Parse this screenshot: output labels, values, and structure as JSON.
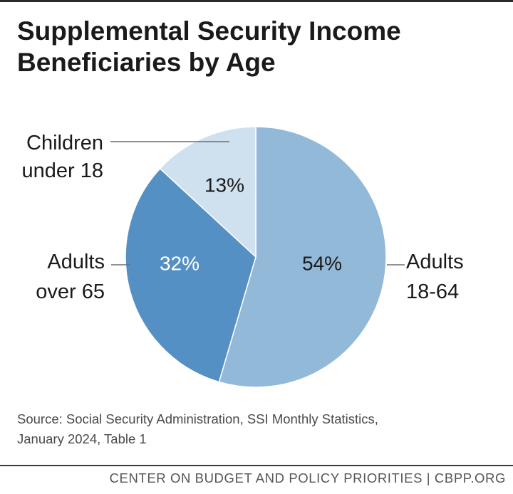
{
  "header": {
    "title_line1": "Supplemental Security Income",
    "title_line2": "Beneficiaries by Age"
  },
  "chart_data": {
    "type": "pie",
    "title": "Supplemental Security Income Beneficiaries by Age",
    "slices": [
      {
        "label_lines": [
          "Adults",
          "18-64"
        ],
        "value": 54,
        "display": "54%",
        "color": "#93b9d9",
        "text_color": "#1a1a1a"
      },
      {
        "label_lines": [
          "Adults",
          "over 65"
        ],
        "value": 32,
        "display": "32%",
        "color": "#5490c4",
        "text_color": "#ffffff"
      },
      {
        "label_lines": [
          "Children",
          "under 18"
        ],
        "value": 13,
        "display": "13%",
        "color": "#cfe0ee",
        "text_color": "#1a1a1a"
      }
    ],
    "start": "12 o'clock",
    "direction": "clockwise",
    "legend": "none"
  },
  "source": {
    "line1": "Source: Social Security Administration, SSI Monthly Statistics,",
    "line2": "January 2024, Table 1"
  },
  "footer": {
    "text": "CENTER ON BUDGET AND POLICY PRIORITIES | CBPP.ORG"
  }
}
